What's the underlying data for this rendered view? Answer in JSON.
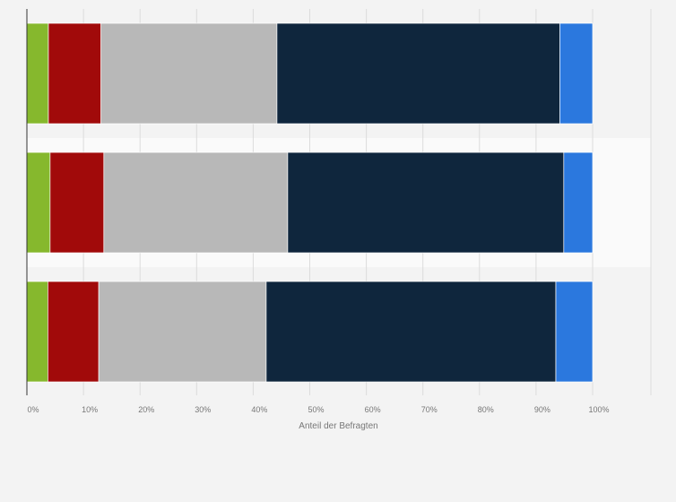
{
  "chart_data": {
    "type": "bar",
    "orientation": "horizontal",
    "stacked": true,
    "categories": [
      "",
      "",
      ""
    ],
    "series": [
      {
        "values": [
          3.8,
          4.1,
          3.7
        ],
        "color": "#86b82d"
      },
      {
        "values": [
          9.3,
          9.5,
          9.0
        ],
        "color": "#a10a0a"
      },
      {
        "values": [
          31.1,
          32.5,
          29.6
        ],
        "color": "#b8b8b8"
      },
      {
        "values": [
          50.0,
          48.8,
          51.2
        ],
        "color": "#0f263d"
      },
      {
        "values": [
          5.8,
          5.1,
          6.5
        ],
        "color": "#2b78de"
      }
    ],
    "xlabel": "Anteil der Befragten",
    "xlim": [
      0,
      100
    ],
    "x_ticks": [
      "0%",
      "10%",
      "20%",
      "30%",
      "40%",
      "50%",
      "60%",
      "70%",
      "80%",
      "90%",
      "100%"
    ],
    "grid": true,
    "legend": "none"
  }
}
